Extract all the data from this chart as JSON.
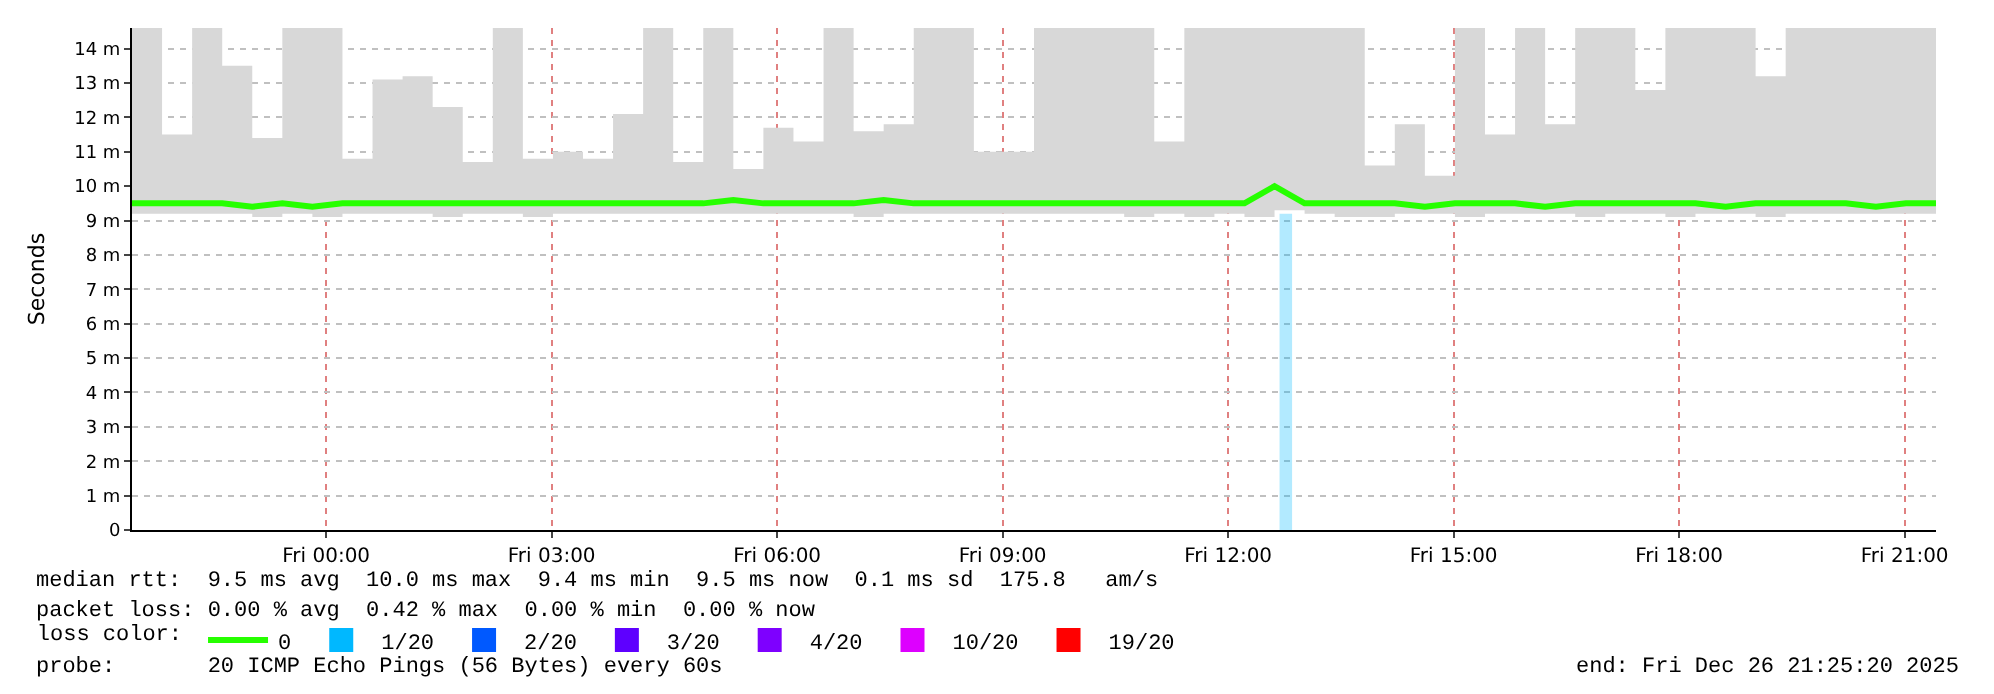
{
  "chart_data": {
    "type": "line",
    "ylabel": "Seconds",
    "legend_title": "loss color:",
    "legend": "bottom left",
    "grid": true,
    "xlim": [
      "2025-12-25T21:25",
      "2025-12-26T21:25"
    ],
    "xticks": [
      {
        "value": "2025-12-26T00:00",
        "label": "Fri 00:00"
      },
      {
        "value": "2025-12-26T03:00",
        "label": "Fri 03:00"
      },
      {
        "value": "2025-12-26T06:00",
        "label": "Fri 06:00"
      },
      {
        "value": "2025-12-26T09:00",
        "label": "Fri 09:00"
      },
      {
        "value": "2025-12-26T12:00",
        "label": "Fri 12:00"
      },
      {
        "value": "2025-12-26T15:00",
        "label": "Fri 15:00"
      },
      {
        "value": "2025-12-26T18:00",
        "label": "Fri 18:00"
      },
      {
        "value": "2025-12-26T21:00",
        "label": "Fri 21:00"
      }
    ],
    "ylim": [
      0,
      14.6
    ],
    "yticks": [
      0,
      {
        "value": 1,
        "label": "1 m"
      },
      {
        "value": 2,
        "label": "2 m"
      },
      {
        "value": 3,
        "label": "3 m"
      },
      {
        "value": 4,
        "label": "4 m"
      },
      {
        "value": 5,
        "label": "5 m"
      },
      {
        "value": 6,
        "label": "6 m"
      },
      {
        "value": 7,
        "label": "7 m"
      },
      {
        "value": 8,
        "label": "8 m"
      },
      {
        "value": 9,
        "label": "9 m"
      },
      {
        "value": 10,
        "label": "10 m"
      },
      {
        "value": 11,
        "label": "11 m"
      },
      {
        "value": 12,
        "label": "12 m"
      },
      {
        "value": 13,
        "label": "13 m"
      },
      {
        "value": 14,
        "label": "14 m"
      }
    ],
    "x": [
      "2025-12-25T21:25",
      "2025-12-25T21:49",
      "2025-12-25T22:13",
      "2025-12-25T22:37",
      "2025-12-25T23:01",
      "2025-12-25T23:25",
      "2025-12-25T23:49",
      "2025-12-26T00:13",
      "2025-12-26T00:37",
      "2025-12-26T01:01",
      "2025-12-26T01:25",
      "2025-12-26T01:49",
      "2025-12-26T02:13",
      "2025-12-26T02:37",
      "2025-12-26T03:01",
      "2025-12-26T03:25",
      "2025-12-26T03:49",
      "2025-12-26T04:13",
      "2025-12-26T04:37",
      "2025-12-26T05:01",
      "2025-12-26T05:25",
      "2025-12-26T05:49",
      "2025-12-26T06:13",
      "2025-12-26T06:37",
      "2025-12-26T07:01",
      "2025-12-26T07:25",
      "2025-12-26T07:49",
      "2025-12-26T08:13",
      "2025-12-26T08:37",
      "2025-12-26T09:01",
      "2025-12-26T09:25",
      "2025-12-26T09:49",
      "2025-12-26T10:13",
      "2025-12-26T10:37",
      "2025-12-26T11:01",
      "2025-12-26T11:25",
      "2025-12-26T11:49",
      "2025-12-26T12:13",
      "2025-12-26T12:37",
      "2025-12-26T13:01",
      "2025-12-26T13:25",
      "2025-12-26T13:49",
      "2025-12-26T14:13",
      "2025-12-26T14:37",
      "2025-12-26T15:01",
      "2025-12-26T15:25",
      "2025-12-26T15:49",
      "2025-12-26T16:13",
      "2025-12-26T16:37",
      "2025-12-26T17:01",
      "2025-12-26T17:25",
      "2025-12-26T17:49",
      "2025-12-26T18:13",
      "2025-12-26T18:37",
      "2025-12-26T19:01",
      "2025-12-26T19:25",
      "2025-12-26T19:49",
      "2025-12-26T20:13",
      "2025-12-26T20:37",
      "2025-12-26T21:01",
      "2025-12-26T21:25"
    ],
    "series": [
      {
        "name": "0",
        "color": "#26ff00",
        "values": [
          9.5,
          9.5,
          9.5,
          9.5,
          9.4,
          9.5,
          9.4,
          9.5,
          9.5,
          9.5,
          9.5,
          9.5,
          9.5,
          9.5,
          9.5,
          9.5,
          9.5,
          9.5,
          9.5,
          9.5,
          9.6,
          9.5,
          9.5,
          9.5,
          9.5,
          9.6,
          9.5,
          9.5,
          9.5,
          9.5,
          9.5,
          9.5,
          9.5,
          9.5,
          9.5,
          9.5,
          9.5,
          9.5,
          10.0,
          9.5,
          9.5,
          9.5,
          9.5,
          9.4,
          9.5,
          9.5,
          9.5,
          9.4,
          9.5,
          9.5,
          9.5,
          9.5,
          9.5,
          9.4,
          9.5,
          9.5,
          9.5,
          9.5,
          9.4,
          9.5,
          9.5
        ],
        "lower": [
          9.2,
          9.2,
          9.2,
          9.2,
          9.1,
          9.2,
          9.1,
          9.2,
          9.2,
          9.2,
          9.1,
          9.2,
          9.2,
          9.1,
          9.2,
          9.2,
          9.2,
          9.2,
          9.2,
          9.2,
          9.2,
          9.2,
          9.2,
          9.2,
          9.1,
          9.2,
          9.2,
          9.2,
          9.2,
          9.2,
          9.2,
          9.2,
          9.2,
          9.1,
          9.2,
          9.1,
          9.2,
          9.1,
          9.3,
          9.2,
          9.1,
          9.1,
          9.2,
          9.2,
          9.1,
          9.2,
          9.2,
          9.2,
          9.1,
          9.2,
          9.2,
          9.1,
          9.2,
          9.2,
          9.1,
          9.2,
          9.2,
          9.2,
          9.2,
          9.2,
          9.2
        ],
        "upper": [
          14.6,
          11.5,
          14.6,
          13.5,
          11.4,
          14.6,
          14.6,
          10.8,
          13.1,
          13.2,
          12.3,
          10.7,
          14.6,
          10.8,
          11.0,
          10.8,
          12.1,
          14.6,
          10.7,
          14.6,
          10.5,
          11.7,
          11.3,
          14.6,
          11.6,
          11.8,
          14.6,
          14.6,
          11.0,
          11.0,
          14.6,
          14.6,
          14.6,
          14.6,
          11.3,
          14.6,
          14.6,
          14.6,
          14.6,
          14.6,
          14.6,
          10.6,
          11.8,
          10.3,
          14.6,
          11.5,
          14.6,
          11.8,
          14.6,
          14.6,
          12.8,
          14.6,
          14.6,
          14.6,
          13.2,
          14.6,
          14.6,
          14.6,
          14.6,
          14.6,
          14.6
        ]
      },
      {
        "name": "1/20",
        "type": "bar",
        "color": "#00b8ff",
        "x": [
          "2025-12-26T12:46"
        ],
        "values": [
          9.2
        ]
      },
      {
        "name": "2/20",
        "type": "bar",
        "color": "#0059ff",
        "values": [
          null,
          null,
          null,
          null,
          null,
          null,
          null,
          null,
          null,
          null,
          null,
          null,
          null,
          null,
          null,
          null,
          null,
          null,
          null,
          null,
          null,
          null,
          null,
          null,
          null,
          null,
          null,
          null,
          null,
          null,
          null,
          null,
          null,
          null,
          null,
          null,
          null,
          null,
          null,
          null,
          null,
          null,
          null,
          null,
          null,
          null,
          null,
          null,
          null,
          null,
          null,
          null,
          null,
          null,
          null,
          null,
          null,
          null,
          null,
          null,
          null
        ]
      },
      {
        "name": "3/20",
        "type": "bar",
        "color": "#5e00ff",
        "values": [
          null,
          null,
          null,
          null,
          null,
          null,
          null,
          null,
          null,
          null,
          null,
          null,
          null,
          null,
          null,
          null,
          null,
          null,
          null,
          null,
          null,
          null,
          null,
          null,
          null,
          null,
          null,
          null,
          null,
          null,
          null,
          null,
          null,
          null,
          null,
          null,
          null,
          null,
          null,
          null,
          null,
          null,
          null,
          null,
          null,
          null,
          null,
          null,
          null,
          null,
          null,
          null,
          null,
          null,
          null,
          null,
          null,
          null,
          null,
          null,
          null
        ]
      },
      {
        "name": "4/20",
        "type": "bar",
        "color": "#7e00ff",
        "values": [
          null,
          null,
          null,
          null,
          null,
          null,
          null,
          null,
          null,
          null,
          null,
          null,
          null,
          null,
          null,
          null,
          null,
          null,
          null,
          null,
          null,
          null,
          null,
          null,
          null,
          null,
          null,
          null,
          null,
          null,
          null,
          null,
          null,
          null,
          null,
          null,
          null,
          null,
          null,
          null,
          null,
          null,
          null,
          null,
          null,
          null,
          null,
          null,
          null,
          null,
          null,
          null,
          null,
          null,
          null,
          null,
          null,
          null,
          null,
          null,
          null
        ]
      },
      {
        "name": "10/20",
        "type": "bar",
        "color": "#dd00ff",
        "values": [
          null,
          null,
          null,
          null,
          null,
          null,
          null,
          null,
          null,
          null,
          null,
          null,
          null,
          null,
          null,
          null,
          null,
          null,
          null,
          null,
          null,
          null,
          null,
          null,
          null,
          null,
          null,
          null,
          null,
          null,
          null,
          null,
          null,
          null,
          null,
          null,
          null,
          null,
          null,
          null,
          null,
          null,
          null,
          null,
          null,
          null,
          null,
          null,
          null,
          null,
          null,
          null,
          null,
          null,
          null,
          null,
          null,
          null,
          null,
          null,
          null
        ]
      },
      {
        "name": "19/20",
        "type": "bar",
        "color": "#ff0000",
        "values": [
          null,
          null,
          null,
          null,
          null,
          null,
          null,
          null,
          null,
          null,
          null,
          null,
          null,
          null,
          null,
          null,
          null,
          null,
          null,
          null,
          null,
          null,
          null,
          null,
          null,
          null,
          null,
          null,
          null,
          null,
          null,
          null,
          null,
          null,
          null,
          null,
          null,
          null,
          null,
          null,
          null,
          null,
          null,
          null,
          null,
          null,
          null,
          null,
          null,
          null,
          null,
          null,
          null,
          null,
          null,
          null,
          null,
          null,
          null,
          null,
          null
        ]
      }
    ],
    "annotations": [
      "median rtt:  9.5 ms avg  10.0 ms max  9.4 ms min  9.5 ms now  0.1 ms sd  175.8   am/s",
      "packet loss: 0.00 % avg  0.42 % max  0.00 % min  0.00 % now",
      "probe:       20 ICMP Echo Pings (56 Bytes) every 60s",
      "end: Fri Dec 26 21:25:20 2025"
    ]
  }
}
